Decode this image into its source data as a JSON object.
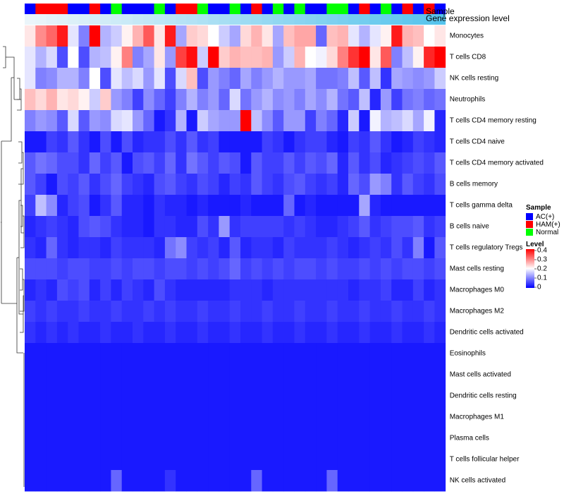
{
  "chart_data": {
    "type": "heatmap",
    "title": "",
    "column_annotation_labels": [
      "Sample",
      "Gene expression level"
    ],
    "sample_codes": [
      "A",
      "H",
      "H",
      "H",
      "A",
      "A",
      "H",
      "A",
      "N",
      "A",
      "A",
      "A",
      "N",
      "A",
      "H",
      "H",
      "N",
      "A",
      "A",
      "N",
      "A",
      "H",
      "A",
      "N",
      "A",
      "N",
      "A",
      "A",
      "N",
      "N",
      "A",
      "H",
      "A",
      "N",
      "A",
      "H",
      "A",
      "H",
      "A"
    ],
    "expression_level": [
      0.02,
      0.04,
      0.07,
      0.09,
      0.12,
      0.14,
      0.17,
      0.19,
      0.22,
      0.24,
      0.27,
      0.29,
      0.32,
      0.34,
      0.37,
      0.39,
      0.42,
      0.45,
      0.47,
      0.5,
      0.53,
      0.55,
      0.58,
      0.61,
      0.63,
      0.66,
      0.68,
      0.71,
      0.74,
      0.76,
      0.79,
      0.81,
      0.84,
      0.87,
      0.89,
      0.92,
      0.95,
      0.97,
      1.0
    ],
    "rows": [
      "Monocytes",
      "T cells CD8",
      "NK cells resting",
      "Neutrophils",
      "T cells CD4 memory resting",
      "T cells CD4 naive",
      "T cells CD4 memory activated",
      "B cells memory",
      "T cells gamma delta",
      "B cells naive",
      "T cells regulatory  Tregs",
      "Mast cells resting",
      "Macrophages M0",
      "Macrophages M2",
      "Dendritic cells activated",
      "Eosinophils",
      "Mast cells activated",
      "Dendritic cells resting",
      "Macrophages M1",
      "Plasma cells",
      "T cells follicular helper",
      "NK cells activated"
    ],
    "values": [
      [
        0.22,
        0.29,
        0.32,
        0.38,
        0.18,
        0.1,
        0.4,
        0.14,
        0.16,
        0.21,
        0.26,
        0.33,
        0.22,
        0.38,
        0.13,
        0.24,
        0.23,
        0.2,
        0.16,
        0.13,
        0.23,
        0.26,
        0.22,
        0.13,
        0.25,
        0.27,
        0.27,
        0.08,
        0.25,
        0.26,
        0.18,
        0.14,
        0.18,
        0.21,
        0.38,
        0.26,
        0.25,
        0.2,
        0.22
      ],
      [
        0.18,
        0.14,
        0.17,
        0.06,
        0.2,
        0.06,
        0.14,
        0.15,
        0.21,
        0.3,
        0.1,
        0.13,
        0.22,
        0.12,
        0.35,
        0.39,
        0.16,
        0.4,
        0.24,
        0.26,
        0.25,
        0.25,
        0.26,
        0.12,
        0.16,
        0.26,
        0.2,
        0.19,
        0.23,
        0.3,
        0.36,
        0.4,
        0.22,
        0.33,
        0.1,
        0.15,
        0.21,
        0.37,
        0.4
      ],
      [
        0.18,
        0.1,
        0.11,
        0.14,
        0.14,
        0.1,
        0.2,
        0.06,
        0.18,
        0.15,
        0.17,
        0.12,
        0.18,
        0.06,
        0.17,
        0.25,
        0.06,
        0.12,
        0.1,
        0.08,
        0.13,
        0.1,
        0.12,
        0.14,
        0.12,
        0.12,
        0.13,
        0.09,
        0.09,
        0.1,
        0.15,
        0.07,
        0.15,
        0.04,
        0.13,
        0.12,
        0.11,
        0.12,
        0.16
      ],
      [
        0.25,
        0.23,
        0.26,
        0.22,
        0.23,
        0.21,
        0.16,
        0.24,
        0.12,
        0.1,
        0.05,
        0.11,
        0.08,
        0.05,
        0.1,
        0.14,
        0.1,
        0.12,
        0.08,
        0.17,
        0.09,
        0.12,
        0.14,
        0.11,
        0.12,
        0.1,
        0.13,
        0.11,
        0.14,
        0.09,
        0.07,
        0.15,
        0.03,
        0.12,
        0.05,
        0.09,
        0.1,
        0.08,
        0.09
      ],
      [
        0.1,
        0.12,
        0.11,
        0.07,
        0.17,
        0.07,
        0.12,
        0.11,
        0.17,
        0.18,
        0.12,
        0.08,
        0.02,
        0.04,
        0.14,
        0.02,
        0.16,
        0.13,
        0.12,
        0.12,
        0.4,
        0.15,
        0.11,
        0.07,
        0.12,
        0.12,
        0.05,
        0.1,
        0.08,
        0.03,
        0.16,
        0.02,
        0.19,
        0.14,
        0.15,
        0.17,
        0.13,
        0.19,
        0.03
      ],
      [
        0.02,
        0.02,
        0.05,
        0.04,
        0.07,
        0.04,
        0.02,
        0.06,
        0.02,
        0.06,
        0.03,
        0.04,
        0.04,
        0.06,
        0.04,
        0.07,
        0.04,
        0.05,
        0.02,
        0.02,
        0.02,
        0.02,
        0.05,
        0.04,
        0.02,
        0.04,
        0.05,
        0.05,
        0.03,
        0.02,
        0.05,
        0.04,
        0.07,
        0.04,
        0.02,
        0.03,
        0.05,
        0.04,
        0.03
      ],
      [
        0.07,
        0.09,
        0.08,
        0.06,
        0.06,
        0.04,
        0.08,
        0.05,
        0.07,
        0.02,
        0.06,
        0.07,
        0.05,
        0.08,
        0.04,
        0.09,
        0.07,
        0.05,
        0.07,
        0.06,
        0.02,
        0.07,
        0.05,
        0.05,
        0.07,
        0.05,
        0.07,
        0.06,
        0.08,
        0.03,
        0.07,
        0.04,
        0.06,
        0.03,
        0.04,
        0.05,
        0.06,
        0.05,
        0.07
      ],
      [
        0.07,
        0.05,
        0.02,
        0.06,
        0.05,
        0.07,
        0.04,
        0.06,
        0.08,
        0.05,
        0.04,
        0.03,
        0.06,
        0.07,
        0.05,
        0.04,
        0.06,
        0.05,
        0.03,
        0.05,
        0.04,
        0.07,
        0.05,
        0.04,
        0.06,
        0.07,
        0.05,
        0.04,
        0.05,
        0.03,
        0.08,
        0.06,
        0.12,
        0.1,
        0.04,
        0.07,
        0.05,
        0.04,
        0.06
      ],
      [
        0.05,
        0.15,
        0.11,
        0.03,
        0.05,
        0.06,
        0.02,
        0.04,
        0.07,
        0.03,
        0.03,
        0.02,
        0.04,
        0.03,
        0.03,
        0.02,
        0.03,
        0.02,
        0.02,
        0.02,
        0.03,
        0.02,
        0.02,
        0.02,
        0.08,
        0.02,
        0.03,
        0.02,
        0.02,
        0.02,
        0.02,
        0.13,
        0.03,
        0.02,
        0.02,
        0.02,
        0.02,
        0.02,
        0.02
      ],
      [
        0.03,
        0.04,
        0.05,
        0.04,
        0.03,
        0.06,
        0.07,
        0.06,
        0.04,
        0.03,
        0.03,
        0.02,
        0.04,
        0.04,
        0.03,
        0.03,
        0.06,
        0.04,
        0.12,
        0.04,
        0.05,
        0.05,
        0.05,
        0.05,
        0.04,
        0.05,
        0.04,
        0.03,
        0.03,
        0.04,
        0.05,
        0.07,
        0.04,
        0.05,
        0.06,
        0.06,
        0.07,
        0.04,
        0.05
      ],
      [
        0.04,
        0.03,
        0.08,
        0.04,
        0.03,
        0.04,
        0.04,
        0.03,
        0.05,
        0.04,
        0.04,
        0.04,
        0.03,
        0.09,
        0.11,
        0.05,
        0.04,
        0.05,
        0.03,
        0.07,
        0.03,
        0.04,
        0.04,
        0.03,
        0.05,
        0.04,
        0.04,
        0.04,
        0.05,
        0.04,
        0.03,
        0.04,
        0.05,
        0.04,
        0.06,
        0.04,
        0.1,
        0.02,
        0.07
      ],
      [
        0.06,
        0.06,
        0.06,
        0.05,
        0.06,
        0.06,
        0.05,
        0.05,
        0.06,
        0.05,
        0.06,
        0.06,
        0.05,
        0.06,
        0.06,
        0.05,
        0.06,
        0.05,
        0.06,
        0.08,
        0.05,
        0.06,
        0.05,
        0.06,
        0.05,
        0.06,
        0.06,
        0.05,
        0.06,
        0.05,
        0.05,
        0.06,
        0.05,
        0.06,
        0.05,
        0.06,
        0.06,
        0.05,
        0.06
      ],
      [
        0.03,
        0.04,
        0.03,
        0.06,
        0.05,
        0.06,
        0.03,
        0.05,
        0.03,
        0.05,
        0.04,
        0.03,
        0.06,
        0.04,
        0.03,
        0.03,
        0.03,
        0.03,
        0.03,
        0.04,
        0.04,
        0.04,
        0.03,
        0.04,
        0.04,
        0.04,
        0.04,
        0.04,
        0.04,
        0.04,
        0.03,
        0.04,
        0.04,
        0.05,
        0.03,
        0.03,
        0.05,
        0.03,
        0.04
      ],
      [
        0.05,
        0.04,
        0.05,
        0.04,
        0.04,
        0.05,
        0.04,
        0.04,
        0.05,
        0.04,
        0.04,
        0.05,
        0.04,
        0.05,
        0.04,
        0.04,
        0.05,
        0.04,
        0.04,
        0.05,
        0.04,
        0.04,
        0.05,
        0.04,
        0.04,
        0.05,
        0.04,
        0.04,
        0.05,
        0.04,
        0.04,
        0.05,
        0.04,
        0.04,
        0.05,
        0.04,
        0.04,
        0.05,
        0.04
      ],
      [
        0.04,
        0.03,
        0.04,
        0.03,
        0.04,
        0.03,
        0.03,
        0.04,
        0.03,
        0.03,
        0.04,
        0.03,
        0.03,
        0.04,
        0.03,
        0.03,
        0.04,
        0.03,
        0.03,
        0.04,
        0.03,
        0.03,
        0.04,
        0.03,
        0.03,
        0.04,
        0.03,
        0.03,
        0.04,
        0.03,
        0.03,
        0.04,
        0.03,
        0.03,
        0.04,
        0.03,
        0.03,
        0.04,
        0.03
      ],
      [
        0.02,
        0.02,
        0.02,
        0.02,
        0.02,
        0.02,
        0.02,
        0.02,
        0.02,
        0.02,
        0.02,
        0.02,
        0.02,
        0.02,
        0.02,
        0.02,
        0.02,
        0.02,
        0.02,
        0.02,
        0.02,
        0.02,
        0.02,
        0.02,
        0.02,
        0.02,
        0.02,
        0.02,
        0.02,
        0.02,
        0.02,
        0.02,
        0.02,
        0.02,
        0.02,
        0.02,
        0.02,
        0.02,
        0.02
      ],
      [
        0.02,
        0.02,
        0.02,
        0.02,
        0.02,
        0.02,
        0.02,
        0.02,
        0.02,
        0.02,
        0.02,
        0.02,
        0.02,
        0.02,
        0.02,
        0.02,
        0.02,
        0.02,
        0.02,
        0.02,
        0.02,
        0.02,
        0.02,
        0.02,
        0.02,
        0.02,
        0.02,
        0.02,
        0.02,
        0.02,
        0.02,
        0.02,
        0.02,
        0.02,
        0.02,
        0.02,
        0.02,
        0.02,
        0.02
      ],
      [
        0.02,
        0.02,
        0.02,
        0.02,
        0.02,
        0.02,
        0.02,
        0.02,
        0.02,
        0.02,
        0.02,
        0.02,
        0.02,
        0.02,
        0.02,
        0.02,
        0.02,
        0.02,
        0.02,
        0.02,
        0.02,
        0.02,
        0.02,
        0.02,
        0.02,
        0.02,
        0.02,
        0.02,
        0.02,
        0.02,
        0.02,
        0.02,
        0.02,
        0.02,
        0.02,
        0.02,
        0.02,
        0.02,
        0.02
      ],
      [
        0.02,
        0.02,
        0.02,
        0.02,
        0.02,
        0.02,
        0.02,
        0.02,
        0.02,
        0.02,
        0.02,
        0.02,
        0.02,
        0.02,
        0.02,
        0.02,
        0.02,
        0.02,
        0.02,
        0.02,
        0.02,
        0.02,
        0.02,
        0.02,
        0.02,
        0.02,
        0.02,
        0.02,
        0.02,
        0.02,
        0.02,
        0.02,
        0.02,
        0.02,
        0.02,
        0.02,
        0.02,
        0.02,
        0.02
      ],
      [
        0.02,
        0.02,
        0.02,
        0.02,
        0.02,
        0.02,
        0.02,
        0.02,
        0.02,
        0.02,
        0.02,
        0.02,
        0.02,
        0.02,
        0.02,
        0.02,
        0.02,
        0.02,
        0.02,
        0.02,
        0.02,
        0.02,
        0.02,
        0.02,
        0.02,
        0.02,
        0.02,
        0.02,
        0.02,
        0.02,
        0.02,
        0.02,
        0.02,
        0.02,
        0.02,
        0.02,
        0.02,
        0.02,
        0.02
      ],
      [
        0.02,
        0.02,
        0.02,
        0.02,
        0.02,
        0.02,
        0.02,
        0.02,
        0.02,
        0.02,
        0.02,
        0.02,
        0.02,
        0.02,
        0.02,
        0.02,
        0.02,
        0.02,
        0.02,
        0.02,
        0.02,
        0.02,
        0.02,
        0.02,
        0.02,
        0.02,
        0.02,
        0.02,
        0.02,
        0.02,
        0.02,
        0.02,
        0.02,
        0.02,
        0.02,
        0.02,
        0.02,
        0.02,
        0.02
      ],
      [
        0.02,
        0.02,
        0.02,
        0.02,
        0.02,
        0.02,
        0.02,
        0.02,
        0.08,
        0.02,
        0.02,
        0.02,
        0.02,
        0.04,
        0.02,
        0.02,
        0.02,
        0.02,
        0.02,
        0.02,
        0.02,
        0.08,
        0.02,
        0.02,
        0.02,
        0.02,
        0.02,
        0.02,
        0.08,
        0.02,
        0.02,
        0.02,
        0.02,
        0.02,
        0.02,
        0.02,
        0.02,
        0.02,
        0.02
      ]
    ],
    "color_scale": {
      "min": 0,
      "mid": 0.2,
      "max": 0.4,
      "low_color": "#0000ff",
      "mid_color": "#ffffff",
      "high_color": "#ff0000"
    },
    "annotation_colors": {
      "gene_low": "#eef6fa",
      "gene_high": "#56c3ec"
    },
    "legend": {
      "sample_title": "Sample",
      "sample_items": [
        {
          "code": "A",
          "label": "AC(+)",
          "color": "#0000ff"
        },
        {
          "code": "H",
          "label": "HAM(+)",
          "color": "#ff0000"
        },
        {
          "code": "N",
          "label": "Normal",
          "color": "#00ff00"
        }
      ],
      "level_title": "Level",
      "level_ticks": [
        0.4,
        0.3,
        0.2,
        0.1,
        0
      ]
    }
  }
}
